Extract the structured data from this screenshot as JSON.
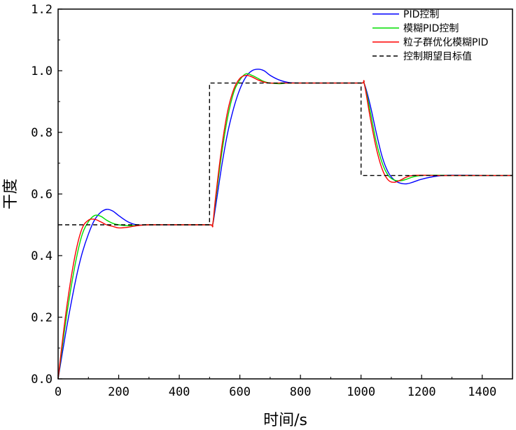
{
  "chart_data": {
    "type": "line",
    "xlabel": "时间/s",
    "ylabel": "干度",
    "xlim": [
      0,
      1500
    ],
    "ylim": [
      0,
      1.2
    ],
    "xticks": [
      0,
      200,
      400,
      600,
      800,
      1000,
      1200,
      1400
    ],
    "yticks": [
      0.0,
      0.2,
      0.4,
      0.6,
      0.8,
      1.0,
      1.2
    ],
    "xtick_labels": [
      "0",
      "200",
      "400",
      "600",
      "800",
      "1000",
      "1200",
      "1400"
    ],
    "ytick_labels": [
      "0.0",
      "0.2",
      "0.4",
      "0.6",
      "0.8",
      "1.0",
      "1.2"
    ],
    "grid": false,
    "legend_position": "top-right",
    "series": [
      {
        "name": "PID控制",
        "color": "#0000ff",
        "dash": "solid",
        "x": [
          0,
          20,
          40,
          60,
          80,
          100,
          120,
          140,
          160,
          180,
          200,
          230,
          260,
          300,
          400,
          500,
          510,
          520,
          540,
          560,
          580,
          600,
          620,
          640,
          660,
          680,
          700,
          730,
          760,
          800,
          900,
          1000,
          1010,
          1030,
          1050,
          1070,
          1090,
          1110,
          1130,
          1150,
          1170,
          1200,
          1250,
          1300,
          1400,
          1500
        ],
        "y": [
          0.0,
          0.12,
          0.23,
          0.33,
          0.41,
          0.47,
          0.515,
          0.54,
          0.55,
          0.545,
          0.53,
          0.51,
          0.5,
          0.5,
          0.5,
          0.5,
          0.5,
          0.56,
          0.69,
          0.8,
          0.88,
          0.94,
          0.98,
          1.0,
          1.005,
          1.0,
          0.985,
          0.97,
          0.962,
          0.96,
          0.96,
          0.96,
          0.96,
          0.89,
          0.8,
          0.72,
          0.67,
          0.645,
          0.635,
          0.633,
          0.638,
          0.648,
          0.658,
          0.661,
          0.66,
          0.66
        ]
      },
      {
        "name": "模糊PID控制",
        "color": "#00dd00",
        "dash": "solid",
        "x": [
          0,
          20,
          40,
          60,
          80,
          100,
          120,
          140,
          160,
          180,
          200,
          230,
          260,
          300,
          400,
          500,
          510,
          520,
          540,
          560,
          580,
          600,
          620,
          640,
          660,
          680,
          700,
          730,
          760,
          800,
          900,
          1000,
          1010,
          1030,
          1050,
          1070,
          1090,
          1110,
          1130,
          1150,
          1170,
          1200,
          1250,
          1300,
          1400,
          1500
        ],
        "y": [
          0.0,
          0.15,
          0.28,
          0.39,
          0.47,
          0.51,
          0.53,
          0.528,
          0.515,
          0.505,
          0.5,
          0.497,
          0.498,
          0.5,
          0.5,
          0.5,
          0.5,
          0.58,
          0.73,
          0.85,
          0.93,
          0.97,
          0.99,
          0.985,
          0.975,
          0.965,
          0.96,
          0.958,
          0.96,
          0.96,
          0.96,
          0.96,
          0.96,
          0.87,
          0.77,
          0.7,
          0.66,
          0.645,
          0.643,
          0.648,
          0.655,
          0.66,
          0.661,
          0.66,
          0.66,
          0.66
        ]
      },
      {
        "name": "粒子群优化模糊PID",
        "color": "#ff0000",
        "dash": "solid",
        "x": [
          0,
          20,
          40,
          60,
          80,
          100,
          120,
          140,
          160,
          180,
          200,
          230,
          260,
          300,
          400,
          500,
          510,
          520,
          540,
          560,
          580,
          600,
          620,
          640,
          660,
          680,
          700,
          730,
          760,
          800,
          900,
          1000,
          1010,
          1030,
          1050,
          1070,
          1090,
          1110,
          1130,
          1150,
          1170,
          1200,
          1250,
          1300,
          1400,
          1500
        ],
        "y": [
          0.0,
          0.17,
          0.31,
          0.42,
          0.49,
          0.515,
          0.518,
          0.51,
          0.5,
          0.495,
          0.49,
          0.492,
          0.497,
          0.5,
          0.5,
          0.5,
          0.5,
          0.59,
          0.75,
          0.87,
          0.94,
          0.975,
          0.985,
          0.98,
          0.97,
          0.963,
          0.96,
          0.96,
          0.96,
          0.96,
          0.96,
          0.96,
          0.96,
          0.85,
          0.75,
          0.68,
          0.645,
          0.638,
          0.645,
          0.655,
          0.66,
          0.661,
          0.66,
          0.66,
          0.66,
          0.66
        ]
      },
      {
        "name": "控制期望目标值",
        "color": "#000000",
        "dash": "dashed",
        "x": [
          0,
          500,
          500,
          1000,
          1000,
          1500
        ],
        "y": [
          0.5,
          0.5,
          0.96,
          0.96,
          0.66,
          0.66
        ]
      }
    ]
  }
}
